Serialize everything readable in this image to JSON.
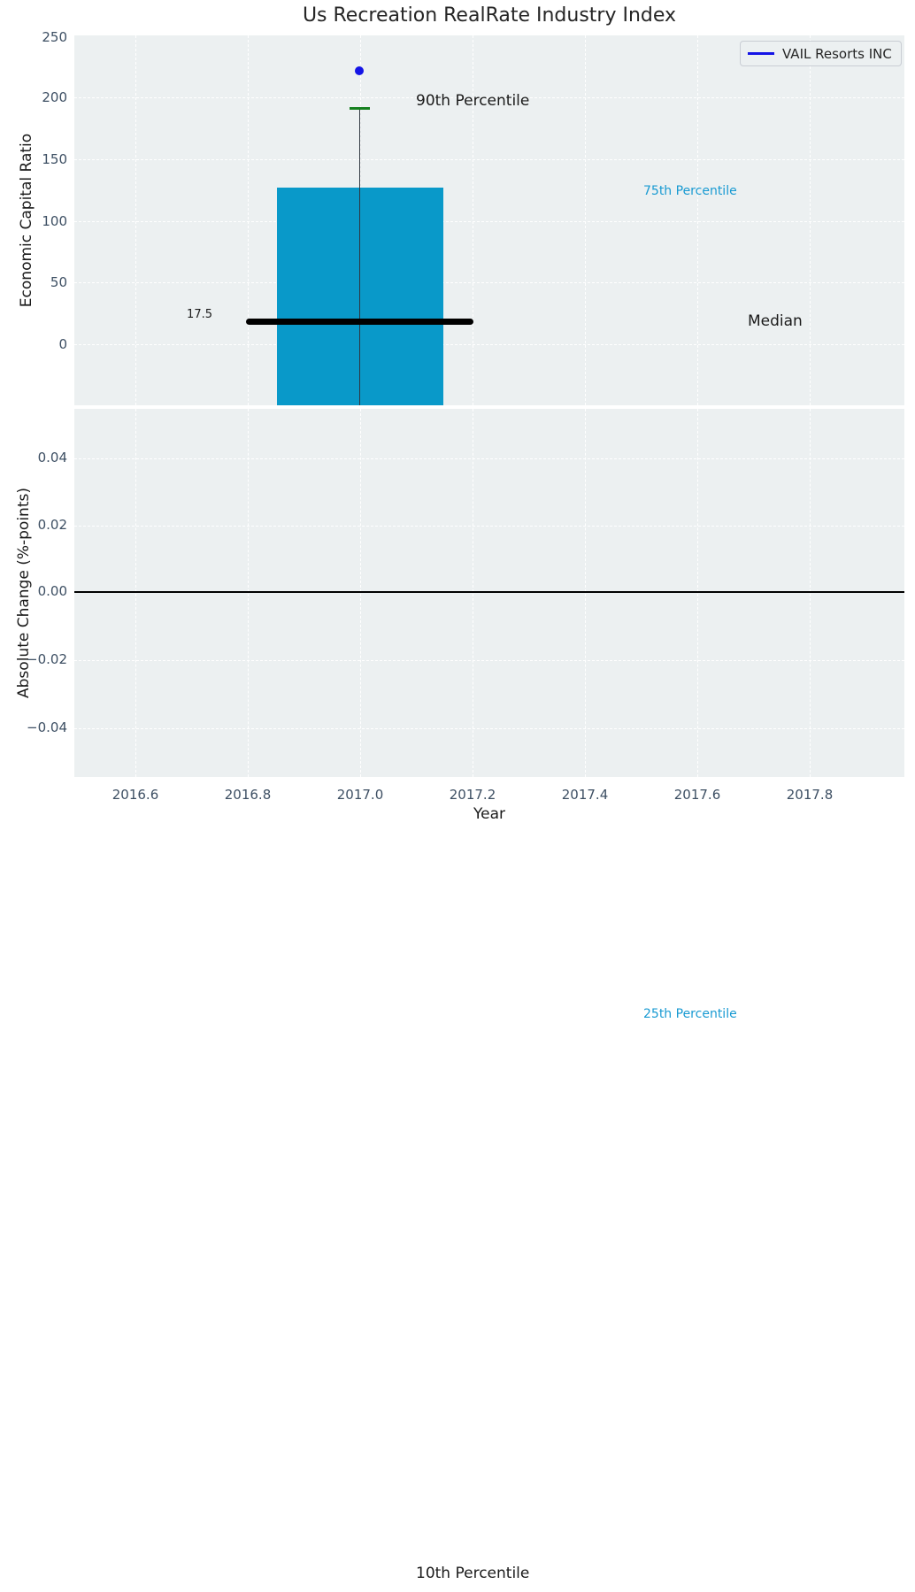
{
  "title": "Us Recreation RealRate Industry Index",
  "legend": {
    "label": "VAIL Resorts INC",
    "line_color": "#1414e6"
  },
  "top_plot": {
    "ylabel": "Economic Capital Ratio",
    "yticks": [
      "250",
      "200",
      "150",
      "100",
      "50",
      "0"
    ],
    "median_value_label": "17.5",
    "annotations": {
      "p90": "90th Percentile",
      "p75": "75th Percentile",
      "median": "Median"
    }
  },
  "bottom_plot": {
    "ylabel": "Absolute Change (%-points)",
    "yticks": [
      "0.04",
      "0.02",
      "0.00",
      "−0.02",
      "−0.04"
    ],
    "xlabel": "Year",
    "xticks": [
      "2016.6",
      "2016.8",
      "2017.0",
      "2017.2",
      "2017.4",
      "2017.6",
      "2017.8"
    ]
  },
  "outside_annotations": {
    "p25": "25th Percentile",
    "p10": "10th Percentile"
  },
  "colors": {
    "axes_background": "#ecf0f1",
    "box_fill": "#0999c9",
    "whisker_cap": "#15801e",
    "marker_blue": "#1414e6",
    "median_line": "#000000",
    "cyan_annotation_text": "#189ad2",
    "tick_label": "#3d4f63",
    "grid": "#ffffff"
  },
  "chart_data": [
    {
      "type": "bar",
      "subplot": "top",
      "title": "Us Recreation RealRate Industry Index",
      "xlabel": "Year",
      "ylabel": "Economic Capital Ratio",
      "xlim": [
        2016.49,
        2017.97
      ],
      "ylim": [
        -49.5,
        250
      ],
      "grid": "white dashed on light-gray background",
      "legend_position": "upper right",
      "series": [
        {
          "name": "VAIL Resorts INC",
          "type": "scatter",
          "color": "#1414e6",
          "x": [
            2017.0
          ],
          "y": [
            221
          ]
        },
        {
          "name": "industry percentile box",
          "type": "box",
          "x_center": 2017.0,
          "box_x_range": [
            2016.85,
            2017.15
          ],
          "box_top_75th_percentile": 127,
          "box_bottom": "extends below visible y-range (clipped at -49.5)",
          "whisker_top_90th_percentile": 190,
          "median": 17.5,
          "median_line_x_range": [
            2016.8,
            2017.2
          ],
          "box_color": "#0999c9",
          "whisker_cap_color": "#15801e",
          "median_line_color": "#000000"
        }
      ],
      "annotations": [
        {
          "text": "90th Percentile",
          "color": "#1a1a1a",
          "anchor_y_value": 190
        },
        {
          "text": "75th Percentile",
          "color": "#189ad2",
          "anchor_y_value": 127
        },
        {
          "text": "Median",
          "color": "#1a1a1a",
          "anchor_y_value": 17.5
        },
        {
          "text": "17.5",
          "color": "#1a1a1a",
          "anchor_y_value": 17.5
        },
        {
          "text": "25th Percentile",
          "color": "#189ad2",
          "note": "drawn below both axes, outside plot area"
        },
        {
          "text": "10th Percentile",
          "color": "#1a1a1a",
          "note": "drawn at very bottom edge of figure"
        }
      ]
    },
    {
      "type": "line",
      "subplot": "bottom",
      "xlabel": "Year",
      "ylabel": "Absolute Change (%-points)",
      "xlim": [
        2016.49,
        2017.97
      ],
      "ylim": [
        -0.055,
        0.054
      ],
      "yticks": [
        0.04,
        0.02,
        0.0,
        -0.02,
        -0.04
      ],
      "xticks": [
        2016.6,
        2016.8,
        2017.0,
        2017.2,
        2017.4,
        2017.6,
        2017.8
      ],
      "series": [
        {
          "name": "zero reference line",
          "type": "horizontal-line",
          "y": 0.0,
          "color": "#000000",
          "spans_full_width": true
        }
      ]
    }
  ]
}
